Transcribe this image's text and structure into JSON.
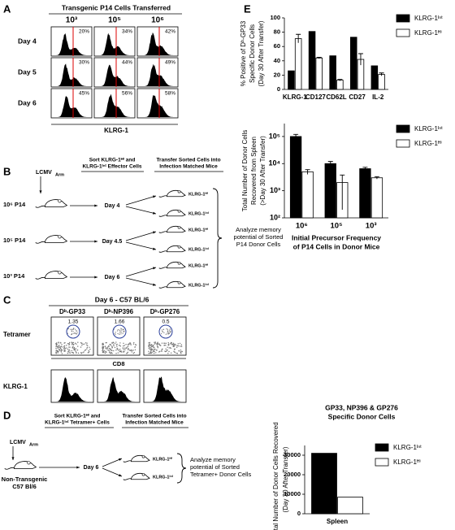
{
  "panel_labels": [
    "A",
    "B",
    "C",
    "D",
    "E"
  ],
  "panel_a": {
    "title": "Transgenic P14 Cells Transferred",
    "columns": [
      "10³",
      "10⁵",
      "10⁶"
    ],
    "rows": [
      {
        "label": "Day 4",
        "percents": [
          "20%",
          "34%",
          "42%"
        ]
      },
      {
        "label": "Day 5",
        "percents": [
          "30%",
          "44%",
          "49%"
        ]
      },
      {
        "label": "Day 6",
        "percents": [
          "45%",
          "56%",
          "58%"
        ]
      }
    ],
    "axis_label": "KLRG-1"
  },
  "panel_b": {
    "virus": "LCMV",
    "strain": "Arm",
    "sort_step": [
      "Sort KLRG-1ᴴⁱ and",
      "KLRG-1ᴵⁿᵗ Effector Cells"
    ],
    "transfer_step": [
      "Transfer Sorted Cells into",
      "Infection Matched Mice"
    ],
    "groups": [
      {
        "dose": "10⁶ P14",
        "day": "Day 4"
      },
      {
        "dose": "10⁵ P14",
        "day": "Day 4.5"
      },
      {
        "dose": "10³ P14",
        "day": "Day 6"
      }
    ],
    "recipients": [
      "KLRG-1ᴴⁱ",
      "KLRG-1ᴵⁿᵗ"
    ],
    "outcome": [
      "Analyze memory",
      "potential of Sorted",
      "P14 Donor Cells"
    ]
  },
  "panel_c": {
    "title": "Day 6 - C57 BL/6",
    "columns": [
      {
        "tetramer": "Dᵇ-GP33",
        "percent": 1.35
      },
      {
        "tetramer": "Dᵇ-NP396",
        "percent": 1.66
      },
      {
        "tetramer": "Dᵇ-GP276",
        "percent": 0.5
      }
    ],
    "row_label": "Tetramer",
    "x_label": "CD8",
    "histogram_label": "KLRG-1"
  },
  "panel_d": {
    "virus": "LCMV",
    "strain": "Arm",
    "host": [
      "Non-Transgenic",
      "C57 Bl/6"
    ],
    "sort_step": [
      "Sort KLRG-1ᴴⁱ and",
      "KLRG-1ᴵⁿᵗ Tetramer+ Cells"
    ],
    "transfer_step": [
      "Transfer Sorted Cells into",
      "Infection Matched Mice"
    ],
    "day": "Day 6",
    "recipients": [
      "KLRG-1ᴴⁱ",
      "KLRG-1ᴵⁿᵗ"
    ],
    "outcome": [
      "Analyze memory",
      "potential of Sorted",
      "Tetramer+ Donor Cells"
    ]
  },
  "chart_data": [
    {
      "type": "bar",
      "y_label": [
        "% Positive of Dᵇ-GP33",
        "Specific Donor Cells",
        "(Day 30 After Transfer)"
      ],
      "categories": [
        "KLRG-1",
        "CD127",
        "CD62L",
        "CD27",
        "IL-2"
      ],
      "series": [
        {
          "name": "KLRG-1ᴵⁿᵗ",
          "color": "#000000",
          "values": [
            26,
            81,
            47,
            73,
            33
          ]
        },
        {
          "name": "KLRG-1ᴴⁱ",
          "color": "#ffffff",
          "values": [
            71,
            44,
            13,
            42,
            21
          ],
          "errors": [
            6,
            1,
            1,
            8,
            2
          ]
        }
      ],
      "ylim": [
        0,
        100
      ],
      "yticks": [
        0,
        20,
        40,
        60,
        80,
        100
      ],
      "legend": "right"
    },
    {
      "type": "bar",
      "log_scale": true,
      "y_label": [
        "Total Number of Donor Cells",
        "Recovered from Spleen",
        "(>Day 30 After Transfer)"
      ],
      "x_label": [
        "Initial Precursor Frequency",
        "of P14 Cells in Donor Mice"
      ],
      "categories": [
        "10⁶",
        "10⁵",
        "10³"
      ],
      "series": [
        {
          "name": "KLRG-1ᴵⁿᵗ",
          "color": "#000000",
          "values": [
            100000,
            10000,
            6500
          ],
          "errors": [
            20000,
            2000,
            800
          ]
        },
        {
          "name": "KLRG-1ᴴⁱ",
          "color": "#ffffff",
          "values": [
            5000,
            2000,
            3000
          ],
          "errors": [
            1000,
            1800,
            300
          ]
        }
      ],
      "ylim": [
        100,
        300000
      ],
      "yticks": [
        {
          "value": 100,
          "label": "10²"
        },
        {
          "value": 1000,
          "label": "10³"
        },
        {
          "value": 10000,
          "label": "10⁴"
        },
        {
          "value": 100000,
          "label": "10⁵"
        }
      ],
      "legend": "right"
    },
    {
      "type": "bar",
      "title": [
        "GP33, NP396 & GP276",
        "Specific Donor Cells"
      ],
      "y_label": [
        "Total Number of Donor Cells Recovered",
        "(Day 30 After Transfer)"
      ],
      "categories": [
        "Spleen"
      ],
      "series": [
        {
          "name": "KLRG-1ᴵⁿᵗ",
          "color": "#000000",
          "values": [
            31000
          ]
        },
        {
          "name": "KLRG-1ᴴⁱ",
          "color": "#ffffff",
          "values": [
            8500
          ]
        }
      ],
      "ylim": [
        0,
        35000
      ],
      "yticks": [
        0,
        10000,
        20000,
        30000
      ],
      "legend": "right"
    }
  ]
}
